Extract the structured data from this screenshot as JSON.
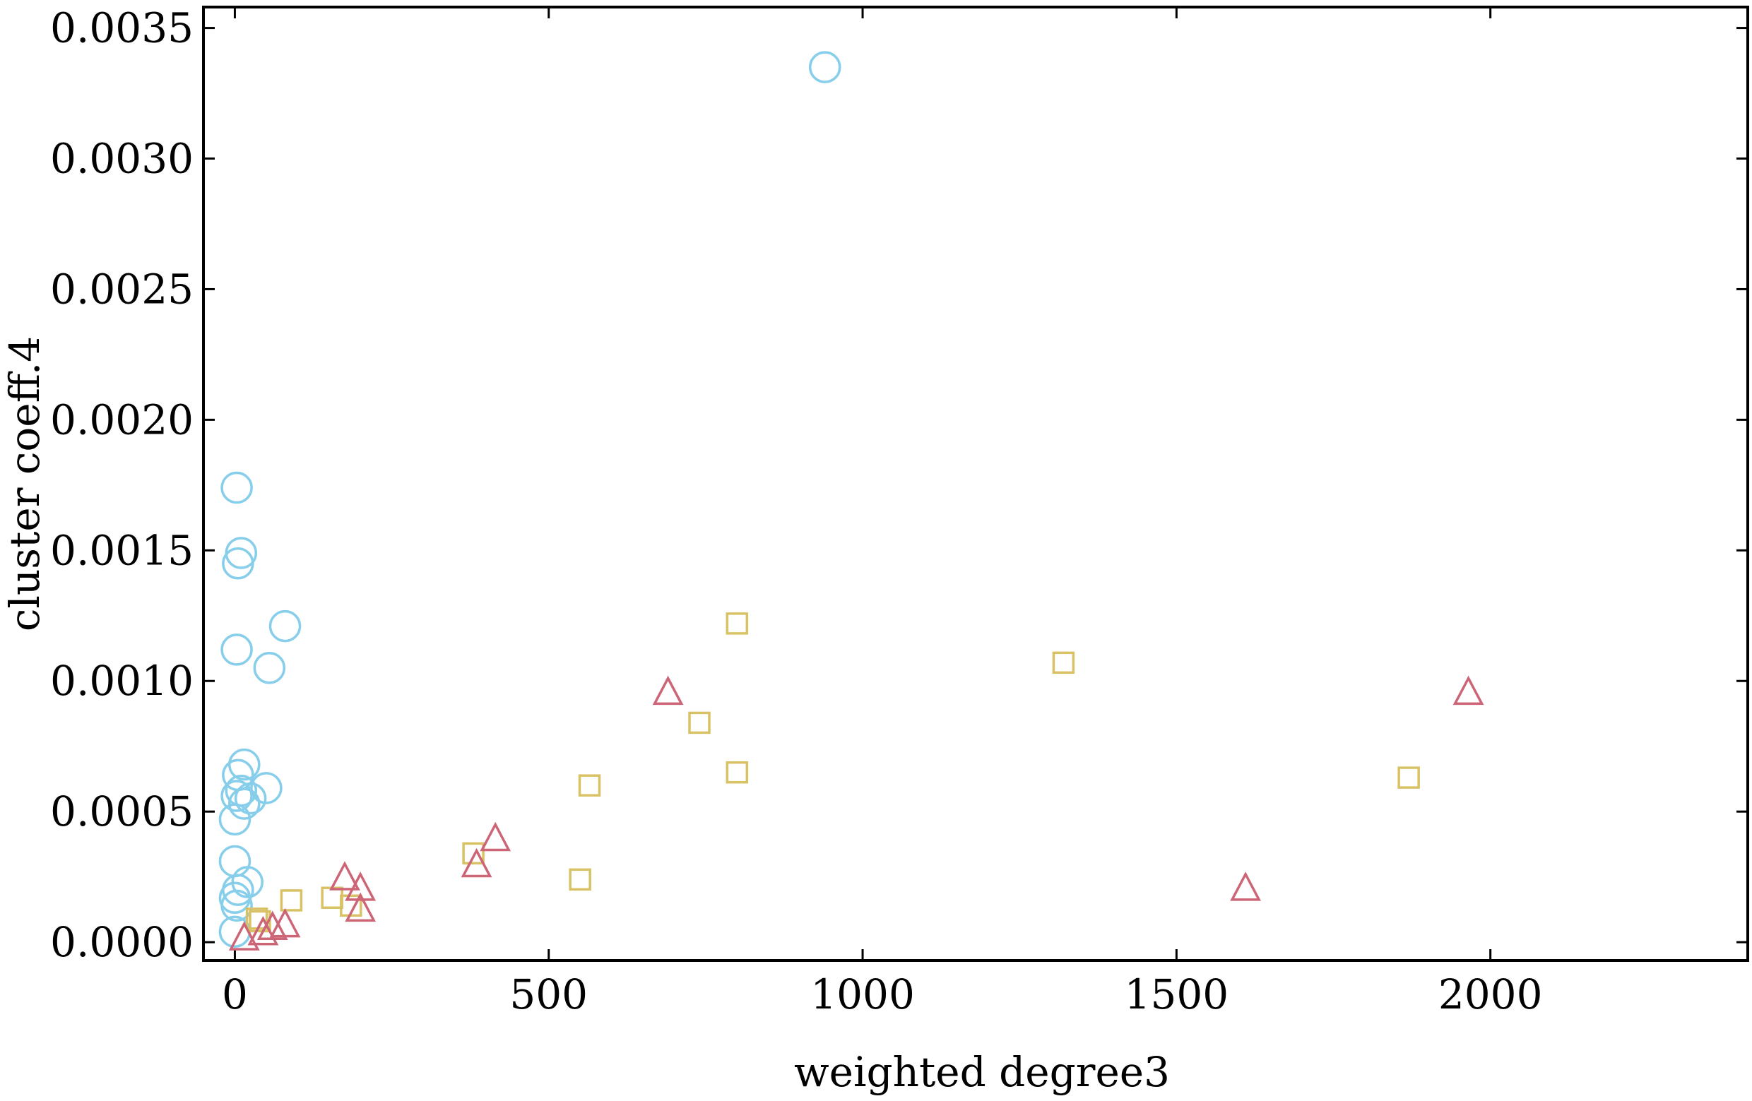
{
  "chart_data": {
    "type": "scatter",
    "xlabel": "weighted degree3",
    "ylabel": "cluster coeff.4",
    "xlim": [
      -50,
      2410
    ],
    "ylim": [
      -7e-05,
      0.00358
    ],
    "xticks": [
      0,
      500,
      1000,
      1500,
      2000
    ],
    "xtick_labels": [
      "0",
      "500",
      "1000",
      "1500",
      "2000"
    ],
    "yticks": [
      0.0,
      0.0005,
      0.001,
      0.0015,
      0.002,
      0.0025,
      0.003,
      0.0035
    ],
    "ytick_labels": [
      "0.0000",
      "0.0005",
      "0.0010",
      "0.0015",
      "0.0020",
      "0.0025",
      "0.0030",
      "0.0035"
    ],
    "grid": false,
    "series": [
      {
        "marker": "circle",
        "color": "#87ceeb",
        "points": [
          [
            940,
            0.00335
          ],
          [
            3,
            0.00174
          ],
          [
            10,
            0.00149
          ],
          [
            5,
            0.00145
          ],
          [
            80,
            0.00121
          ],
          [
            3,
            0.00112
          ],
          [
            55,
            0.00105
          ],
          [
            15,
            0.00068
          ],
          [
            5,
            0.00064
          ],
          [
            50,
            0.00059
          ],
          [
            10,
            0.00058
          ],
          [
            3,
            0.00056
          ],
          [
            25,
            0.00055
          ],
          [
            15,
            0.00053
          ],
          [
            0,
            0.00047
          ],
          [
            0,
            0.00031
          ],
          [
            20,
            0.00023
          ],
          [
            5,
            0.0002
          ],
          [
            0,
            0.00017
          ],
          [
            3,
            0.00014
          ],
          [
            0,
            4e-05
          ]
        ]
      },
      {
        "marker": "square",
        "color": "#d9c266",
        "points": [
          [
            800,
            0.00122
          ],
          [
            1320,
            0.00107
          ],
          [
            740,
            0.00084
          ],
          [
            800,
            0.00065
          ],
          [
            1870,
            0.00063
          ],
          [
            565,
            0.0006
          ],
          [
            380,
            0.00034
          ],
          [
            550,
            0.00024
          ],
          [
            155,
            0.00017
          ],
          [
            90,
            0.00016
          ],
          [
            185,
            0.00014
          ],
          [
            35,
            9e-05
          ],
          [
            40,
            8e-05
          ]
        ]
      },
      {
        "marker": "triangle",
        "color": "#cc6677",
        "points": [
          [
            690,
            0.00095
          ],
          [
            1965,
            0.00095
          ],
          [
            415,
            0.00039
          ],
          [
            385,
            0.00029
          ],
          [
            175,
            0.00024
          ],
          [
            200,
            0.0002
          ],
          [
            1610,
            0.0002
          ],
          [
            200,
            0.00012
          ],
          [
            80,
            6e-05
          ],
          [
            60,
            5e-05
          ],
          [
            45,
            3e-05
          ],
          [
            15,
            1e-05
          ]
        ]
      }
    ]
  }
}
